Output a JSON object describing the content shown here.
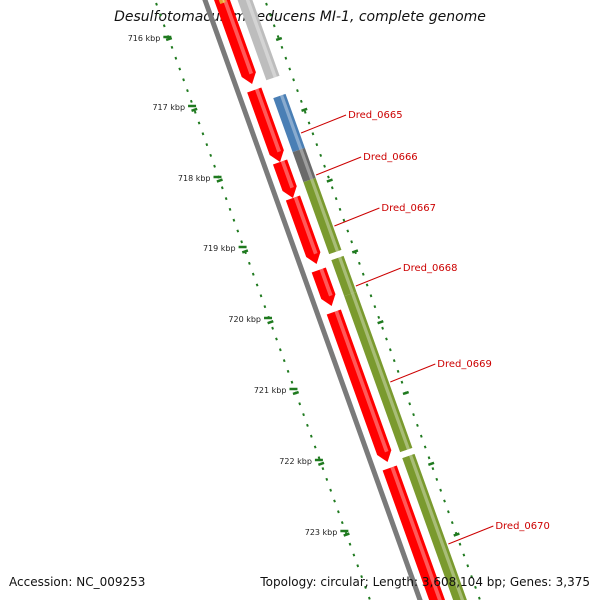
{
  "title": "Desulfotomaculum reducens MI-1, complete genome",
  "footer": {
    "accession": "Accession: NC_009253",
    "summary": "Topology: circular; Length: 3,608,104 bp; Genes: 3,375"
  },
  "colors": {
    "cds_red": "#ff0000",
    "gray_feature": "#bdbdbd",
    "blue_feature": "#4a7fb5",
    "dark_gray_feature": "#6a6a6a",
    "olive_feature": "#7a9a2e",
    "tick_green": "#1f7a1f",
    "backbone": "#7a7a7a",
    "label_red": "#cc0000"
  },
  "scale": [
    "716 kbp",
    "717 kbp",
    "718 kbp",
    "719 kbp",
    "720 kbp",
    "721 kbp",
    "722 kbp",
    "723 kbp"
  ],
  "genes": [
    {
      "name": "Dred_0665",
      "u0": 0.16,
      "u1": 0.25,
      "color": "#4a7fb5"
    },
    {
      "name": "Dred_0666",
      "u0": 0.25,
      "u1": 0.3,
      "color": "#6a6a6a"
    },
    {
      "name": "Dred_0667",
      "u0": 0.3,
      "u1": 0.42,
      "color": "#7a9a2e"
    },
    {
      "name": "Dred_0668",
      "u0": 0.43,
      "u1": 0.49,
      "color": "#7a9a2e"
    },
    {
      "name": "Dred_0669",
      "u0": 0.49,
      "u1": 0.75,
      "color": "#7a9a2e"
    },
    {
      "name": "Dred_0670",
      "u0": 0.76,
      "u1": 1.02,
      "color": "#7a9a2e"
    }
  ],
  "gray_top_feature": {
    "u0": -0.02,
    "u1": 0.13,
    "color": "#bdbdbd"
  },
  "red_features": [
    [
      -0.02,
      0.14
    ],
    [
      0.15,
      0.27
    ],
    [
      0.27,
      0.33
    ],
    [
      0.33,
      0.44
    ],
    [
      0.45,
      0.51
    ],
    [
      0.52,
      0.77
    ],
    [
      0.78,
      1.02
    ]
  ]
}
